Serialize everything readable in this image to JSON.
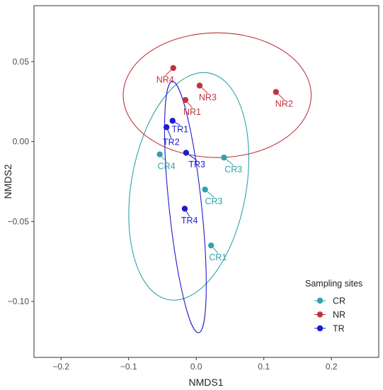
{
  "chart_data": {
    "type": "scatter",
    "xlabel": "NMDS1",
    "ylabel": "NMDS2",
    "xlim": [
      -0.24,
      0.27
    ],
    "ylim": [
      -0.135,
      0.085
    ],
    "x_ticks": [
      {
        "value": -0.2,
        "label": "−0.2"
      },
      {
        "value": -0.1,
        "label": "−0.1"
      },
      {
        "value": 0.0,
        "label": "0.0"
      },
      {
        "value": 0.1,
        "label": "0.1"
      },
      {
        "value": 0.2,
        "label": "0.2"
      }
    ],
    "y_ticks": [
      {
        "value": 0.05,
        "label": "0.05"
      },
      {
        "value": 0.0,
        "label": "0.00"
      },
      {
        "value": -0.05,
        "label": "−0.05"
      },
      {
        "value": -0.1,
        "label": "−0.10"
      }
    ],
    "grid": false,
    "legend": {
      "title": "Sampling sites",
      "position": "bottom-right",
      "entries": [
        "CR",
        "NR",
        "TR"
      ]
    },
    "series": [
      {
        "name": "CR",
        "color": "#2fa3a8",
        "ellipse": {
          "cx": -0.011,
          "cy": -0.028,
          "rx": 0.085,
          "ry": 0.072,
          "rotation": 10
        },
        "points": [
          {
            "label": "CR1",
            "x": 0.022,
            "y": -0.065,
            "lx": 0.032,
            "ly": -0.072
          },
          {
            "label": "CR3",
            "x": 0.013,
            "y": -0.03,
            "lx": 0.026,
            "ly": -0.037
          },
          {
            "label": "CR3",
            "x": 0.041,
            "y": -0.01,
            "lx": 0.055,
            "ly": -0.017
          },
          {
            "label": "CR4",
            "x": -0.054,
            "y": -0.008,
            "lx": -0.044,
            "ly": -0.015
          }
        ]
      },
      {
        "name": "NR",
        "color": "#c1323c",
        "ellipse": {
          "cx": 0.031,
          "cy": 0.029,
          "rx": 0.139,
          "ry": 0.039,
          "rotation": 0
        },
        "points": [
          {
            "label": "NR4",
            "x": -0.034,
            "y": 0.046,
            "lx": -0.046,
            "ly": 0.039
          },
          {
            "label": "NR3",
            "x": 0.005,
            "y": 0.035,
            "lx": 0.017,
            "ly": 0.028
          },
          {
            "label": "NR1",
            "x": -0.016,
            "y": 0.026,
            "lx": -0.006,
            "ly": 0.019
          },
          {
            "label": "NR2",
            "x": 0.118,
            "y": 0.031,
            "lx": 0.13,
            "ly": 0.024
          }
        ]
      },
      {
        "name": "TR",
        "color": "#1c1cd0",
        "ellipse": {
          "cx": -0.016,
          "cy": -0.041,
          "rx": 0.024,
          "ry": 0.079,
          "rotation": -6
        },
        "points": [
          {
            "label": "TR1",
            "x": -0.035,
            "y": 0.013,
            "lx": -0.024,
            "ly": 0.008
          },
          {
            "label": "TR2",
            "x": -0.044,
            "y": 0.009,
            "lx": -0.037,
            "ly": 0.0
          },
          {
            "label": "TR3",
            "x": -0.015,
            "y": -0.007,
            "lx": 0.001,
            "ly": -0.014
          },
          {
            "label": "TR4",
            "x": -0.017,
            "y": -0.042,
            "lx": -0.01,
            "ly": -0.049
          }
        ]
      }
    ]
  }
}
